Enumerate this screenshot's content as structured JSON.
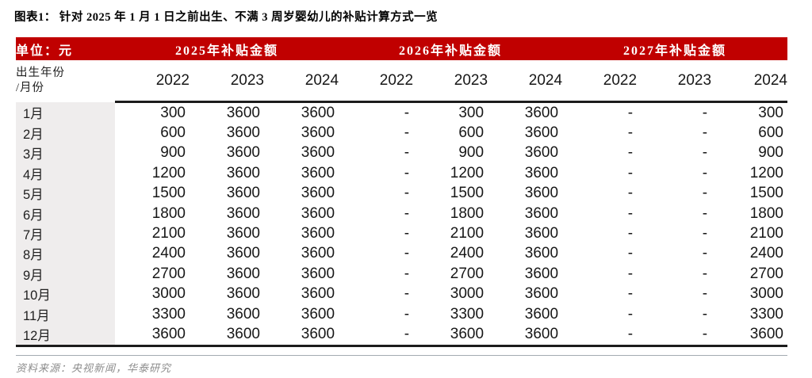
{
  "title": "图表1： 针对 2025 年 1 月 1 日之前出生、不满 3 周岁婴幼儿的补贴计算方式一览",
  "table": {
    "unit_label": "单位：元",
    "groups": [
      "2025年补贴金额",
      "2026年补贴金额",
      "2027年补贴金额"
    ],
    "row_header_line1": "出生年份",
    "row_header_line2": "/月份",
    "years": [
      "2022",
      "2023",
      "2024",
      "2022",
      "2023",
      "2024",
      "2022",
      "2023",
      "2024"
    ],
    "rows": [
      {
        "month": "1月",
        "values": [
          "300",
          "3600",
          "3600",
          "-",
          "300",
          "3600",
          "-",
          "-",
          "300"
        ]
      },
      {
        "month": "2月",
        "values": [
          "600",
          "3600",
          "3600",
          "-",
          "600",
          "3600",
          "-",
          "-",
          "600"
        ]
      },
      {
        "month": "3月",
        "values": [
          "900",
          "3600",
          "3600",
          "-",
          "900",
          "3600",
          "-",
          "-",
          "900"
        ]
      },
      {
        "month": "4月",
        "values": [
          "1200",
          "3600",
          "3600",
          "-",
          "1200",
          "3600",
          "-",
          "-",
          "1200"
        ]
      },
      {
        "month": "5月",
        "values": [
          "1500",
          "3600",
          "3600",
          "-",
          "1500",
          "3600",
          "-",
          "-",
          "1500"
        ]
      },
      {
        "month": "6月",
        "values": [
          "1800",
          "3600",
          "3600",
          "-",
          "1800",
          "3600",
          "-",
          "-",
          "1800"
        ]
      },
      {
        "month": "7月",
        "values": [
          "2100",
          "3600",
          "3600",
          "-",
          "2100",
          "3600",
          "-",
          "-",
          "2100"
        ]
      },
      {
        "month": "8月",
        "values": [
          "2400",
          "3600",
          "3600",
          "-",
          "2400",
          "3600",
          "-",
          "-",
          "2400"
        ]
      },
      {
        "month": "9月",
        "values": [
          "2700",
          "3600",
          "3600",
          "-",
          "2700",
          "3600",
          "-",
          "-",
          "2700"
        ]
      },
      {
        "month": "10月",
        "values": [
          "3000",
          "3600",
          "3600",
          "-",
          "3000",
          "3600",
          "-",
          "-",
          "3000"
        ]
      },
      {
        "month": "11月",
        "values": [
          "3300",
          "3600",
          "3600",
          "-",
          "3300",
          "3600",
          "-",
          "-",
          "3300"
        ]
      },
      {
        "month": "12月",
        "values": [
          "3600",
          "3600",
          "3600",
          "-",
          "3600",
          "3600",
          "-",
          "-",
          "3600"
        ]
      }
    ]
  },
  "source": "资料来源：央视新闻，华泰研究",
  "chart_data": {
    "type": "table",
    "title": "针对 2025 年 1 月 1 日之前出生、不满 3 周岁婴幼儿的补贴计算方式一览",
    "unit": "元",
    "column_groups": [
      "2025年补贴金额",
      "2026年补贴金额",
      "2027年补贴金额"
    ],
    "columns": [
      "2022",
      "2023",
      "2024",
      "2022",
      "2023",
      "2024",
      "2022",
      "2023",
      "2024"
    ],
    "row_label": "出生年份/月份",
    "row_categories": [
      "1月",
      "2月",
      "3月",
      "4月",
      "5月",
      "6月",
      "7月",
      "8月",
      "9月",
      "10月",
      "11月",
      "12月"
    ],
    "values_per_month_step": 300,
    "max_value": 3600
  },
  "colors": {
    "accent_red": "#C00000",
    "header_text": "#FFFFFF",
    "row_header_bg": "#EFEDED",
    "thick_rule": "#1C1C1C",
    "thin_rule": "#A3ABB1",
    "body_text": "#171717",
    "source_text": "#8C8C8C"
  }
}
